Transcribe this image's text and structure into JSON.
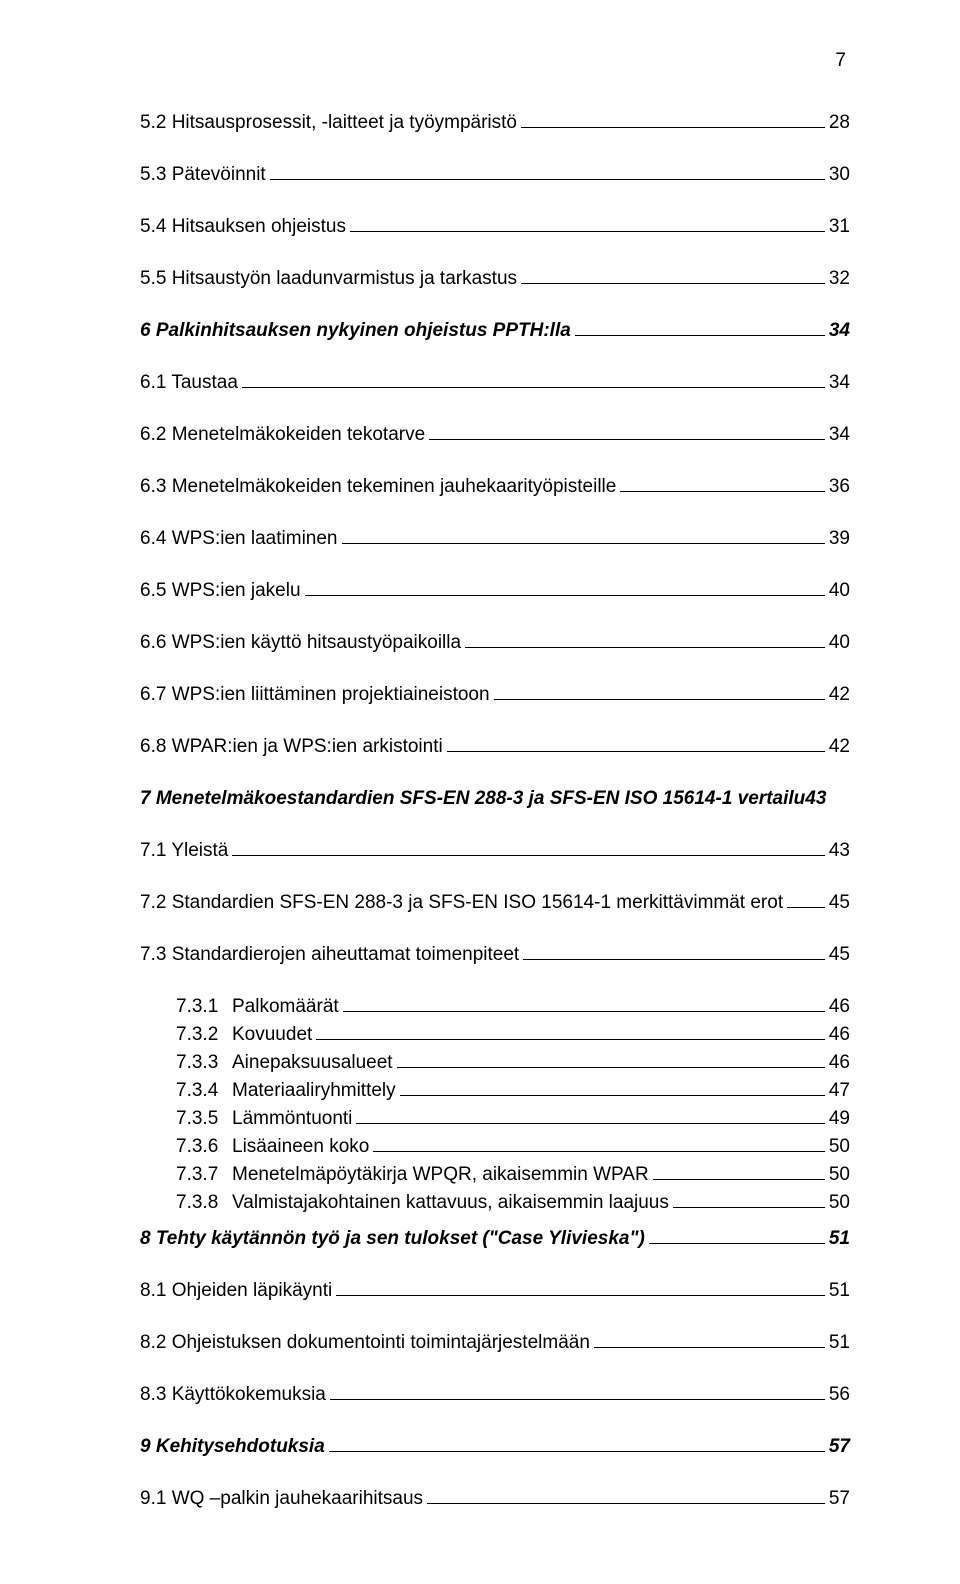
{
  "page_number": "7",
  "entries": [
    {
      "label": "5.2 Hitsausprosessit, -laitteet ja työympäristö",
      "page": "28",
      "style": "normal",
      "indent": 0,
      "spacing": "loose"
    },
    {
      "label": "5.3 Pätevöinnit",
      "page": "30",
      "style": "normal",
      "indent": 0,
      "spacing": "loose"
    },
    {
      "label": "5.4 Hitsauksen ohjeistus",
      "page": "31",
      "style": "normal",
      "indent": 0,
      "spacing": "loose"
    },
    {
      "label": "5.5 Hitsaustyön laadunvarmistus ja tarkastus",
      "page": "32",
      "style": "normal",
      "indent": 0,
      "spacing": "loose"
    },
    {
      "label": "6    Palkinhitsauksen nykyinen ohjeistus PPTH:lla",
      "page": "34",
      "style": "bold-italic",
      "indent": 0,
      "spacing": "loose"
    },
    {
      "label": "6.1 Taustaa",
      "page": "34",
      "style": "normal",
      "indent": 0,
      "spacing": "loose"
    },
    {
      "label": "6.2 Menetelmäkokeiden tekotarve",
      "page": "34",
      "style": "normal",
      "indent": 0,
      "spacing": "loose"
    },
    {
      "label": "6.3 Menetelmäkokeiden tekeminen jauhekaarityöpisteille",
      "page": "36",
      "style": "normal",
      "indent": 0,
      "spacing": "loose"
    },
    {
      "label": "6.4 WPS:ien laatiminen",
      "page": "39",
      "style": "normal",
      "indent": 0,
      "spacing": "loose"
    },
    {
      "label": "6.5 WPS:ien jakelu",
      "page": "40",
      "style": "normal",
      "indent": 0,
      "spacing": "loose"
    },
    {
      "label": "6.6 WPS:ien käyttö hitsaustyöpaikoilla",
      "page": "40",
      "style": "normal",
      "indent": 0,
      "spacing": "loose"
    },
    {
      "label": "6.7 WPS:ien liittäminen projektiaineistoon",
      "page": "42",
      "style": "normal",
      "indent": 0,
      "spacing": "loose"
    },
    {
      "label": "6.8 WPAR:ien ja WPS:ien arkistointi",
      "page": "42",
      "style": "normal",
      "indent": 0,
      "spacing": "loose"
    },
    {
      "label": "7    Menetelmäkoestandardien SFS-EN 288-3  ja SFS-EN ISO 15614-1 vertailu",
      "page": "43",
      "style": "bold-italic",
      "indent": 0,
      "spacing": "loose",
      "no_leader": true
    },
    {
      "label": "7.1 Yleistä",
      "page": "43",
      "style": "normal",
      "indent": 0,
      "spacing": "loose"
    },
    {
      "label": "7.2 Standardien SFS-EN 288-3 ja SFS-EN ISO 15614-1 merkittävimmät erot",
      "page": "45",
      "style": "normal",
      "indent": 0,
      "spacing": "loose"
    },
    {
      "label": "7.3 Standardierojen aiheuttamat toimenpiteet",
      "page": "45",
      "style": "normal",
      "indent": 0,
      "spacing": "loose"
    },
    {
      "num": "7.3.1",
      "label": "Palkomäärät",
      "page": "46",
      "style": "normal",
      "indent": 1,
      "spacing": "tight"
    },
    {
      "num": "7.3.2",
      "label": "Kovuudet",
      "page": "46",
      "style": "normal",
      "indent": 1,
      "spacing": "tight"
    },
    {
      "num": "7.3.3",
      "label": "Ainepaksuusalueet",
      "page": "46",
      "style": "normal",
      "indent": 1,
      "spacing": "tight"
    },
    {
      "num": "7.3.4",
      "label": "Materiaaliryhmittely",
      "page": "47",
      "style": "normal",
      "indent": 1,
      "spacing": "tight"
    },
    {
      "num": "7.3.5",
      "label": "Lämmöntuonti",
      "page": "49",
      "style": "normal",
      "indent": 1,
      "spacing": "tight"
    },
    {
      "num": "7.3.6",
      "label": "Lisäaineen koko",
      "page": "50",
      "style": "normal",
      "indent": 1,
      "spacing": "tight"
    },
    {
      "num": "7.3.7",
      "label": "Menetelmäpöytäkirja WPQR, aikaisemmin WPAR",
      "page": "50",
      "style": "normal",
      "indent": 1,
      "spacing": "tight"
    },
    {
      "num": "7.3.8",
      "label": "Valmistajakohtainen kattavuus, aikaisemmin laajuus",
      "page": "50",
      "style": "normal",
      "indent": 1,
      "spacing": "tight",
      "last_tight": true
    },
    {
      "label": "8    Tehty käytännön työ ja sen tulokset (\"Case Ylivieska\")",
      "page": "51",
      "style": "bold-italic",
      "indent": 0,
      "spacing": "loose"
    },
    {
      "label": "8.1 Ohjeiden läpikäynti",
      "page": "51",
      "style": "normal",
      "indent": 0,
      "spacing": "loose"
    },
    {
      "label": "8.2 Ohjeistuksen dokumentointi toimintajärjestelmään",
      "page": "51",
      "style": "normal",
      "indent": 0,
      "spacing": "loose"
    },
    {
      "label": "8.3 Käyttökokemuksia",
      "page": "56",
      "style": "normal",
      "indent": 0,
      "spacing": "loose"
    },
    {
      "label": "9    Kehitysehdotuksia",
      "page": "57",
      "style": "bold-italic",
      "indent": 0,
      "spacing": "loose"
    },
    {
      "label": "9.1 WQ –palkin jauhekaarihitsaus",
      "page": "57",
      "style": "normal",
      "indent": 0,
      "spacing": "loose"
    }
  ]
}
